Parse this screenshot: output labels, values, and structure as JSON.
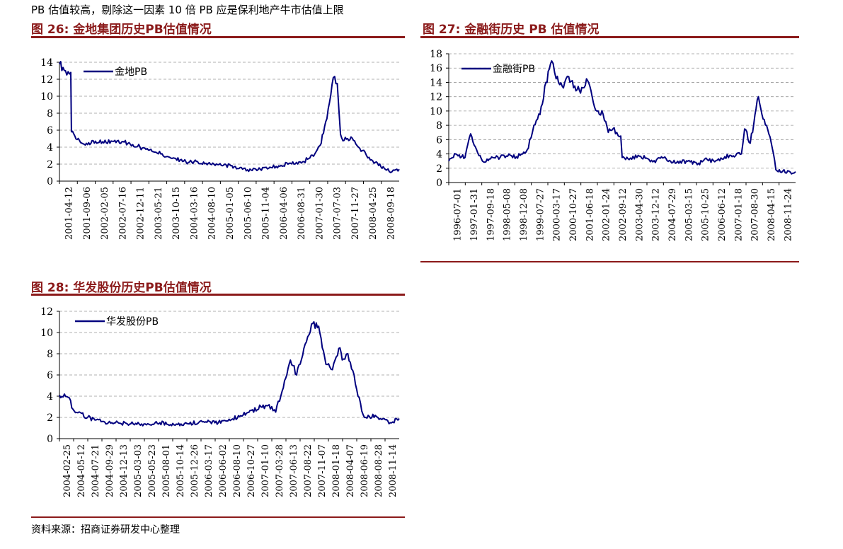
{
  "header_note": "PB 估值较高，剔除这一因素 10 倍 PB 应是保利地产牛市估值上限",
  "source_note": "资料来源：招商证券研发中心整理",
  "colors": {
    "title": "#8b1a1a",
    "series": "#00007f",
    "grid": "#999999"
  },
  "chart_data": [
    {
      "type": "line",
      "title": "图  26:  金地集团历史PB估值情况",
      "ylim": [
        0,
        14
      ],
      "y_ticks": [
        0,
        2,
        4,
        6,
        8,
        10,
        12,
        14
      ],
      "grid": true,
      "legend_position": "top-left",
      "x_tick_labels": [
        "2001-04-12",
        "2001-09-06",
        "2002-02-05",
        "2002-07-16",
        "2002-12-11",
        "2003-05-21",
        "2003-10-15",
        "2004-03-16",
        "2004-08-10",
        "2005-01-05",
        "2005-06-10",
        "2005-11-04",
        "2006-04-06",
        "2006-08-31",
        "2007-01-30",
        "2007-07-03",
        "2007-11-27",
        "2008-04-25",
        "2008-09-18"
      ],
      "series": [
        {
          "name": "金地PB",
          "x": [
            "2001-04-12",
            "2001-06-01",
            "2001-07-15",
            "2001-07-20",
            "2001-09-06",
            "2001-12-01",
            "2002-02-05",
            "2002-04-15",
            "2002-07-16",
            "2002-10-01",
            "2002-12-11",
            "2003-03-01",
            "2003-05-21",
            "2003-08-01",
            "2003-10-15",
            "2004-01-10",
            "2004-03-16",
            "2004-06-01",
            "2004-08-10",
            "2004-10-15",
            "2005-01-05",
            "2005-04-01",
            "2005-06-10",
            "2005-08-20",
            "2005-11-04",
            "2006-02-01",
            "2006-04-06",
            "2006-07-01",
            "2006-08-31",
            "2006-11-01",
            "2007-01-30",
            "2007-03-15",
            "2007-05-01",
            "2007-06-01",
            "2007-07-03",
            "2007-08-05",
            "2007-09-01",
            "2007-10-01",
            "2007-11-27",
            "2008-01-15",
            "2008-03-01",
            "2008-04-25",
            "2008-06-15",
            "2008-08-01",
            "2008-09-18",
            "2008-11-01",
            "2008-12-31"
          ],
          "y": [
            13.8,
            13.0,
            12.8,
            5.8,
            4.9,
            4.3,
            4.7,
            4.5,
            4.8,
            4.6,
            4.3,
            3.9,
            3.5,
            3.2,
            2.8,
            2.5,
            2.2,
            2.3,
            2.1,
            2.0,
            1.9,
            1.7,
            1.4,
            1.3,
            1.4,
            1.6,
            1.8,
            2.1,
            2.2,
            2.3,
            3.2,
            4.2,
            7.0,
            9.2,
            12.2,
            11.5,
            5.5,
            4.8,
            5.2,
            4.2,
            3.6,
            2.8,
            2.2,
            1.7,
            1.3,
            1.1,
            1.4
          ]
        }
      ]
    },
    {
      "type": "line",
      "title": "图  27:  金融街历史 PB 估值情况",
      "ylim": [
        0,
        18
      ],
      "y_ticks": [
        0,
        2,
        4,
        6,
        8,
        10,
        12,
        14,
        16,
        18
      ],
      "grid": true,
      "legend_position": "top-left",
      "x_tick_labels": [
        "1996-07-01",
        "1997-01-31",
        "1997-09-18",
        "1998-05-08",
        "1998-12-08",
        "1999-07-27",
        "2000-03-17",
        "2000-10-27",
        "2001-06-18",
        "2002-01-24",
        "2002-09-12",
        "2003-04-30",
        "2003-12-12",
        "2004-07-29",
        "2005-03-15",
        "2005-10-25",
        "2006-06-12",
        "2007-01-18",
        "2007-08-30",
        "2008-04-15",
        "2008-11-24"
      ],
      "series": [
        {
          "name": "金融街PB",
          "x": [
            "1996-07-01",
            "1996-10-01",
            "1997-01-31",
            "1997-04-15",
            "1997-06-15",
            "1997-09-18",
            "1998-01-01",
            "1998-05-08",
            "1998-09-01",
            "1998-12-08",
            "1999-03-01",
            "1999-05-15",
            "1999-07-27",
            "1999-10-15",
            "2000-01-01",
            "2000-03-17",
            "2000-05-15",
            "2000-08-01",
            "2000-10-27",
            "2001-01-15",
            "2001-04-01",
            "2001-06-18",
            "2001-09-01",
            "2001-11-01",
            "2002-01-24",
            "2002-04-01",
            "2002-06-01",
            "2002-09-12",
            "2002-10-01",
            "2003-01-01",
            "2003-04-30",
            "2003-08-01",
            "2003-12-12",
            "2004-03-01",
            "2004-07-29",
            "2004-11-01",
            "2005-03-15",
            "2005-07-01",
            "2005-10-25",
            "2006-02-01",
            "2006-06-12",
            "2006-09-01",
            "2007-01-18",
            "2007-03-01",
            "2007-05-15",
            "2007-08-30",
            "2007-10-15",
            "2007-12-15",
            "2008-02-15",
            "2008-04-15",
            "2008-07-15",
            "2008-11-24",
            "2008-12-31"
          ],
          "y": [
            3.0,
            4.0,
            3.5,
            6.8,
            5.0,
            3.0,
            3.3,
            3.5,
            4.0,
            3.6,
            4.0,
            4.8,
            8.0,
            9.5,
            14.0,
            17.0,
            14.5,
            13.5,
            14.8,
            13.5,
            12.5,
            14.5,
            12.0,
            10.0,
            9.5,
            7.0,
            7.5,
            6.5,
            3.5,
            3.2,
            3.8,
            3.4,
            2.8,
            3.6,
            2.8,
            3.0,
            2.9,
            2.7,
            3.2,
            2.9,
            3.6,
            3.8,
            4.0,
            7.5,
            5.5,
            12.0,
            9.5,
            8.0,
            5.5,
            1.8,
            1.6,
            1.3,
            1.5
          ]
        }
      ]
    },
    {
      "type": "line",
      "title": "图  28:  华发股份历史PB估值情况",
      "ylim": [
        0,
        12
      ],
      "y_ticks": [
        0,
        2,
        4,
        6,
        8,
        10,
        12
      ],
      "grid": true,
      "legend_position": "top-left",
      "x_tick_labels": [
        "2004-02-25",
        "2004-05-12",
        "2004-07-21",
        "2004-09-29",
        "2004-12-13",
        "2005-03-03",
        "2005-05-23",
        "2005-08-01",
        "2005-10-14",
        "2005-12-26",
        "2006-03-17",
        "2006-06-02",
        "2006-08-10",
        "2006-10-27",
        "2007-01-10",
        "2007-03-28",
        "2007-06-13",
        "2007-08-22",
        "2007-11-07",
        "2008-01-18",
        "2008-04-07",
        "2008-06-19",
        "2008-08-28",
        "2008-11-14"
      ],
      "series": [
        {
          "name": "华发股份PB",
          "x": [
            "2004-02-25",
            "2004-04-10",
            "2004-05-12",
            "2004-07-21",
            "2004-09-29",
            "2004-12-13",
            "2005-03-03",
            "2005-05-23",
            "2005-08-01",
            "2005-10-14",
            "2005-12-26",
            "2006-03-17",
            "2006-06-02",
            "2006-08-10",
            "2006-10-27",
            "2007-01-10",
            "2007-02-15",
            "2007-03-28",
            "2007-05-01",
            "2007-06-13",
            "2007-07-15",
            "2007-08-22",
            "2007-10-01",
            "2007-11-07",
            "2007-12-15",
            "2008-01-18",
            "2008-02-20",
            "2008-03-15",
            "2008-04-07",
            "2008-05-10",
            "2008-06-19",
            "2008-07-10",
            "2008-08-28",
            "2008-10-01",
            "2008-11-14",
            "2008-12-31"
          ],
          "y": [
            4.1,
            3.9,
            2.6,
            2.0,
            1.6,
            1.5,
            1.4,
            1.3,
            1.5,
            1.3,
            1.4,
            1.6,
            1.5,
            1.8,
            2.4,
            3.0,
            3.1,
            2.5,
            4.5,
            7.4,
            6.0,
            8.5,
            10.8,
            10.6,
            7.0,
            6.5,
            8.5,
            7.5,
            8.0,
            6.0,
            2.6,
            2.0,
            2.2,
            1.8,
            1.5,
            1.9
          ]
        }
      ]
    }
  ]
}
